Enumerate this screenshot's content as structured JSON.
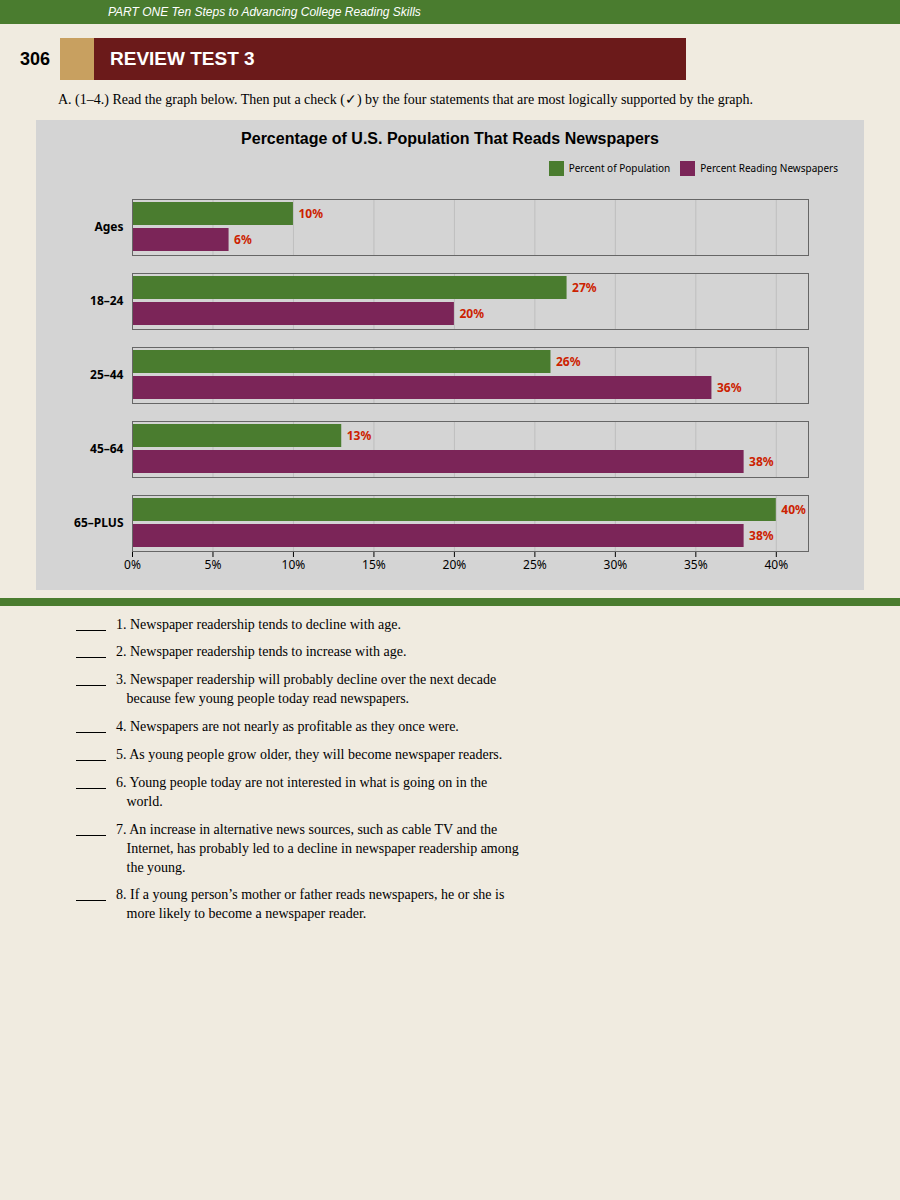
{
  "chart_data": {
    "type": "bar",
    "orientation": "horizontal",
    "title": "Percentage of U.S. Population That Reads Newspapers",
    "categories": [
      "Ages",
      "18–24",
      "25–44",
      "45–64",
      "65–PLUS"
    ],
    "series": [
      {
        "name": "Percent of Population",
        "color": "#4a7c2f",
        "values": [
          10,
          27,
          26,
          13,
          40
        ],
        "value_labels": [
          "10%",
          "27%",
          "26%",
          "13%",
          "40%"
        ]
      },
      {
        "name": "Percent Reading Newspapers",
        "color": "#7b2558",
        "values": [
          6,
          20,
          36,
          38,
          38
        ],
        "value_labels": [
          "6%",
          "20%",
          "36%",
          "38%",
          "38%"
        ]
      }
    ],
    "xlim": [
      0,
      42
    ],
    "xticks": [
      {
        "value": 0,
        "label": "0%"
      },
      {
        "value": 5,
        "label": "5%"
      },
      {
        "value": 10,
        "label": "10%"
      },
      {
        "value": 15,
        "label": "15%"
      },
      {
        "value": 20,
        "label": "20%"
      },
      {
        "value": 25,
        "label": "25%"
      },
      {
        "value": 30,
        "label": "30%"
      },
      {
        "value": 35,
        "label": "35%"
      },
      {
        "value": 40,
        "label": "40%"
      }
    ],
    "grid": true,
    "legend": "upper right",
    "data_labels": true,
    "annotations": [
      "PART ONE   Ten Steps to Advancing College Reading Skills",
      "306",
      "REVIEW TEST 3",
      "A. (1–4.) Read the graph below. Then put a check (✓) by the four statements that are most logically supported by the graph.",
      "1. Newspaper readership tends to decline with age.",
      "2. Newspaper readership tends to increase with age.",
      "3. Newspaper readership will probably decline over the next decade\n   because few young people today read newspapers.",
      "4. Newspapers are not nearly as profitable as they once were.",
      "5. As young people grow older, they will become newspaper readers.",
      "6. Young people today are not interested in what is going on in the\n   world.",
      "7. An increase in alternative news sources, such as cable TV and the\n   Internet, has probably led to a decline in newspaper readership among\n   the young.",
      "8. If a young person’s mother or father reads newspapers, he or she is\n   more likely to become a newspaper reader."
    ]
  }
}
